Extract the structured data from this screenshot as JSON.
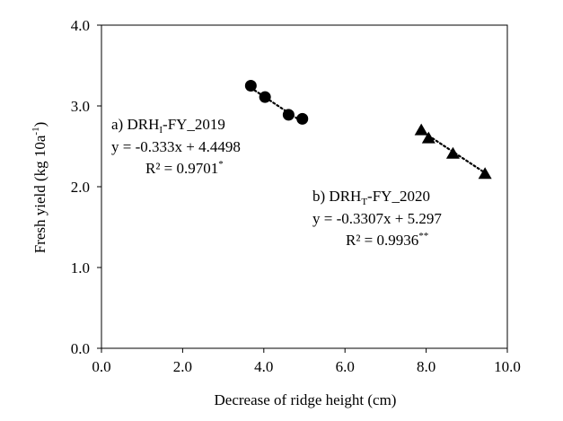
{
  "chart_data": {
    "type": "scatter",
    "xlabel": "Decrease of ridge height (cm)",
    "ylabel_main": "Fresh yield (kg 10a",
    "ylabel_sup": "-1",
    "ylabel_end": ")",
    "xlim": [
      0,
      10
    ],
    "ylim": [
      0,
      4
    ],
    "x_ticks": [
      0,
      2,
      4,
      6,
      8,
      10
    ],
    "x_tick_labels": [
      "0.0",
      "2.0",
      "4.0",
      "6.0",
      "8.0",
      "10.0"
    ],
    "y_ticks": [
      0,
      1,
      2,
      3,
      4
    ],
    "y_tick_labels": [
      "0.0",
      "1.0",
      "2.0",
      "3.0",
      "4.0"
    ],
    "grid": false,
    "series": [
      {
        "marker": "circle",
        "x": [
          3.68,
          4.03,
          4.61,
          4.95
        ],
        "y": [
          3.25,
          3.11,
          2.89,
          2.84
        ],
        "trendline": {
          "slope": -0.333,
          "intercept": 4.4498,
          "x_range": [
            3.68,
            4.95
          ]
        },
        "annotation": {
          "line1_prefix": "a) DRH",
          "line1_sub": "I",
          "line1_suffix": "-FY_2019",
          "line2": "y = -0.333x + 4.4498",
          "line3_main": "R² = 0.9701",
          "line3_sup": "*"
        }
      },
      {
        "marker": "triangle",
        "x": [
          7.88,
          8.06,
          8.66,
          9.45
        ],
        "y": [
          2.71,
          2.61,
          2.42,
          2.17
        ],
        "trendline": {
          "slope": -0.3307,
          "intercept": 5.297,
          "x_range": [
            7.88,
            9.45
          ]
        },
        "annotation": {
          "line1_prefix": "b) DRH",
          "line1_sub": "T",
          "line1_suffix": "-FY_2020",
          "line2": "y = -0.3307x + 5.297",
          "line3_main": "R² = 0.9936",
          "line3_sup": "**"
        }
      }
    ]
  }
}
